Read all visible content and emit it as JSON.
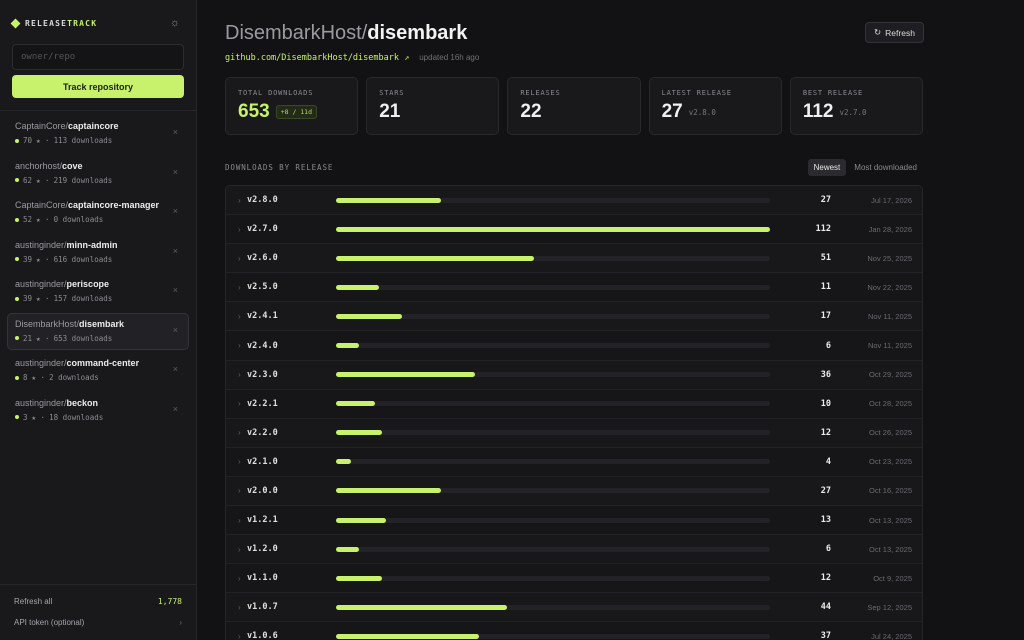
{
  "brand": {
    "prefix": "RELEASE",
    "suffix": "TRACK"
  },
  "sidebar": {
    "input_placeholder": "owner/repo",
    "track_button": "Track repository",
    "repos": [
      {
        "owner": "CaptainCore/",
        "name": "captaincore",
        "stars": "70",
        "downloads": "113 downloads"
      },
      {
        "owner": "anchorhost/",
        "name": "cove",
        "stars": "62",
        "downloads": "219 downloads"
      },
      {
        "owner": "CaptainCore/",
        "name": "captaincore-manager",
        "stars": "52",
        "downloads": "0 downloads"
      },
      {
        "owner": "austinginder/",
        "name": "minn-admin",
        "stars": "39",
        "downloads": "616 downloads"
      },
      {
        "owner": "austinginder/",
        "name": "periscope",
        "stars": "39",
        "downloads": "157 downloads"
      },
      {
        "owner": "DisembarkHost/",
        "name": "disembark",
        "stars": "21",
        "downloads": "653 downloads",
        "active": true
      },
      {
        "owner": "austinginder/",
        "name": "command-center",
        "stars": "8",
        "downloads": "2 downloads"
      },
      {
        "owner": "austinginder/",
        "name": "beckon",
        "stars": "3",
        "downloads": "18 downloads"
      }
    ],
    "refresh_all_label": "Refresh all",
    "refresh_all_count": "1,778",
    "api_token_label": "API token (optional)"
  },
  "header": {
    "owner": "DisembarkHost/",
    "repo": "disembark",
    "link": "github.com/DisembarkHost/disembark ↗",
    "updated": "updated 16h ago",
    "refresh_label": "Refresh"
  },
  "stats": {
    "total_downloads": {
      "label": "TOTAL DOWNLOADS",
      "value": "653",
      "badge": "+8 / 11d"
    },
    "stars": {
      "label": "STARS",
      "value": "21"
    },
    "releases": {
      "label": "RELEASES",
      "value": "22"
    },
    "latest_release": {
      "label": "LATEST RELEASE",
      "value": "27",
      "version": "v2.8.0"
    },
    "best_release": {
      "label": "BEST RELEASE",
      "value": "112",
      "version": "v2.7.0"
    }
  },
  "section": {
    "title": "DOWNLOADS BY RELEASE",
    "sort_newest": "Newest",
    "sort_most": "Most downloaded"
  },
  "chart_data": {
    "type": "bar",
    "categories": [
      "v2.8.0",
      "v2.7.0",
      "v2.6.0",
      "v2.5.0",
      "v2.4.1",
      "v2.4.0",
      "v2.3.0",
      "v2.2.1",
      "v2.2.0",
      "v2.1.0",
      "v2.0.0",
      "v1.2.1",
      "v1.2.0",
      "v1.1.0",
      "v1.0.7",
      "v1.0.6"
    ],
    "values": [
      27,
      112,
      51,
      11,
      17,
      6,
      36,
      10,
      12,
      4,
      27,
      13,
      6,
      12,
      44,
      37
    ],
    "dates": [
      "Jul 17, 2026",
      "Jan 28, 2026",
      "Nov 25, 2025",
      "Nov 22, 2025",
      "Nov 11, 2025",
      "Nov 11, 2025",
      "Oct 29, 2025",
      "Oct 28, 2025",
      "Oct 26, 2025",
      "Oct 23, 2025",
      "Oct 16, 2025",
      "Oct 13, 2025",
      "Oct 13, 2025",
      "Oct 9, 2025",
      "Sep 12, 2025",
      "Jul 24, 2025"
    ],
    "max": 112,
    "accent": "#c8f26b"
  }
}
